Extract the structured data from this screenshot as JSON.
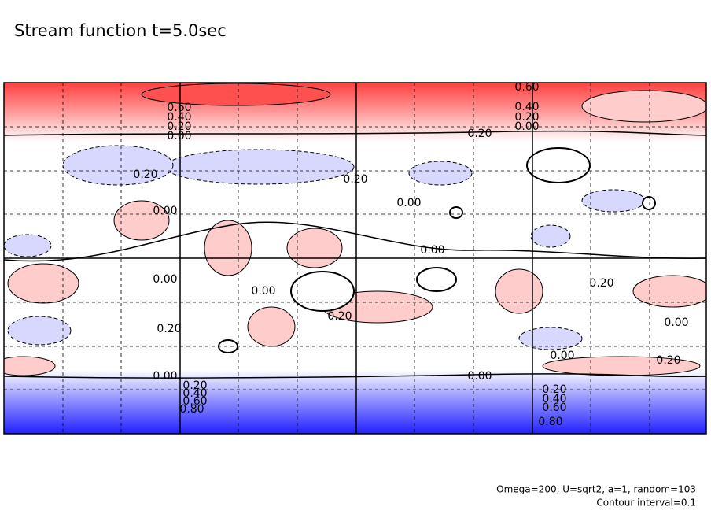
{
  "chart_data": {
    "type": "contour",
    "title": "Stream function t=5.0sec",
    "notes": [
      "Omega=200, U=sqrt2, a=1, random=103",
      "Contour interval=0.1"
    ],
    "contour_labels": [
      "0.60",
      "0.40",
      "0.20",
      "0.00",
      "0.60",
      "0.40",
      "0.20",
      "0.00",
      "0.20",
      "0.20",
      "0.20",
      "0.00",
      "0.00",
      "0.00",
      "0.00",
      "0.00",
      "0.20",
      "0.20",
      "0.20",
      "0.00",
      "0.00",
      "0.20",
      "0.00",
      "0.00",
      "0.20",
      "0.40",
      "0.60",
      "0.80",
      "0.20",
      "0.40",
      "0.60",
      "0.80"
    ]
  }
}
